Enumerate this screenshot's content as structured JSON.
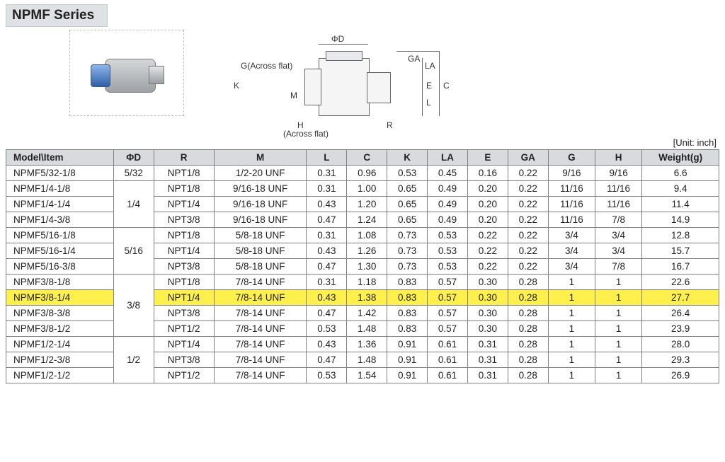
{
  "title": "NPMF Series",
  "unit_label": "[Unit: inch]",
  "diagram_labels": {
    "phiD": "ΦD",
    "G": "G(Across flat)",
    "K": "K",
    "M": "M",
    "H": "H",
    "H_sub": "(Across flat)",
    "R": "R",
    "GA": "GA",
    "LA": "LA",
    "E": "E",
    "L": "L",
    "C": "C"
  },
  "columns": [
    "Model\\Item",
    "ΦD",
    "R",
    "M",
    "L",
    "C",
    "K",
    "LA",
    "E",
    "GA",
    "G",
    "H",
    "Weight(g)"
  ],
  "highlight_row": 8,
  "merge_groups": [
    {
      "col": 1,
      "start": 1,
      "span": 3
    },
    {
      "col": 1,
      "start": 4,
      "span": 3
    },
    {
      "col": 1,
      "start": 7,
      "span": 4
    },
    {
      "col": 1,
      "start": 11,
      "span": 3
    }
  ],
  "rows": [
    [
      "NPMF5/32-1/8",
      "5/32",
      "NPT1/8",
      "1/2-20 UNF",
      "0.31",
      "0.96",
      "0.53",
      "0.45",
      "0.16",
      "0.22",
      "9/16",
      "9/16",
      "6.6"
    ],
    [
      "NPMF1/4-1/8",
      "1/4",
      "NPT1/8",
      "9/16-18 UNF",
      "0.31",
      "1.00",
      "0.65",
      "0.49",
      "0.20",
      "0.22",
      "11/16",
      "11/16",
      "9.4"
    ],
    [
      "NPMF1/4-1/4",
      "",
      "NPT1/4",
      "9/16-18 UNF",
      "0.43",
      "1.20",
      "0.65",
      "0.49",
      "0.20",
      "0.22",
      "11/16",
      "11/16",
      "11.4"
    ],
    [
      "NPMF1/4-3/8",
      "",
      "NPT3/8",
      "9/16-18 UNF",
      "0.47",
      "1.24",
      "0.65",
      "0.49",
      "0.20",
      "0.22",
      "11/16",
      "7/8",
      "14.9"
    ],
    [
      "NPMF5/16-1/8",
      "5/16",
      "NPT1/8",
      "5/8-18 UNF",
      "0.31",
      "1.08",
      "0.73",
      "0.53",
      "0.22",
      "0.22",
      "3/4",
      "3/4",
      "12.8"
    ],
    [
      "NPMF5/16-1/4",
      "",
      "NPT1/4",
      "5/8-18 UNF",
      "0.43",
      "1.26",
      "0.73",
      "0.53",
      "0.22",
      "0.22",
      "3/4",
      "3/4",
      "15.7"
    ],
    [
      "NPMF5/16-3/8",
      "",
      "NPT3/8",
      "5/8-18 UNF",
      "0.47",
      "1.30",
      "0.73",
      "0.53",
      "0.22",
      "0.22",
      "3/4",
      "7/8",
      "16.7"
    ],
    [
      "NPMF3/8-1/8",
      "3/8",
      "NPT1/8",
      "7/8-14 UNF",
      "0.31",
      "1.18",
      "0.83",
      "0.57",
      "0.30",
      "0.28",
      "1",
      "1",
      "22.6"
    ],
    [
      "NPMF3/8-1/4",
      "",
      "NPT1/4",
      "7/8-14 UNF",
      "0.43",
      "1.38",
      "0.83",
      "0.57",
      "0.30",
      "0.28",
      "1",
      "1",
      "27.7"
    ],
    [
      "NPMF3/8-3/8",
      "",
      "NPT3/8",
      "7/8-14 UNF",
      "0.47",
      "1.42",
      "0.83",
      "0.57",
      "0.30",
      "0.28",
      "1",
      "1",
      "26.4"
    ],
    [
      "NPMF3/8-1/2",
      "",
      "NPT1/2",
      "7/8-14 UNF",
      "0.53",
      "1.48",
      "0.83",
      "0.57",
      "0.30",
      "0.28",
      "1",
      "1",
      "23.9"
    ],
    [
      "NPMF1/2-1/4",
      "1/2",
      "NPT1/4",
      "7/8-14 UNF",
      "0.43",
      "1.36",
      "0.91",
      "0.61",
      "0.31",
      "0.28",
      "1",
      "1",
      "28.0"
    ],
    [
      "NPMF1/2-3/8",
      "",
      "NPT3/8",
      "7/8-14 UNF",
      "0.47",
      "1.48",
      "0.91",
      "0.61",
      "0.31",
      "0.28",
      "1",
      "1",
      "29.3"
    ],
    [
      "NPMF1/2-1/2",
      "",
      "NPT1/2",
      "7/8-14 UNF",
      "0.53",
      "1.54",
      "0.91",
      "0.61",
      "0.31",
      "0.28",
      "1",
      "1",
      "26.9"
    ]
  ]
}
